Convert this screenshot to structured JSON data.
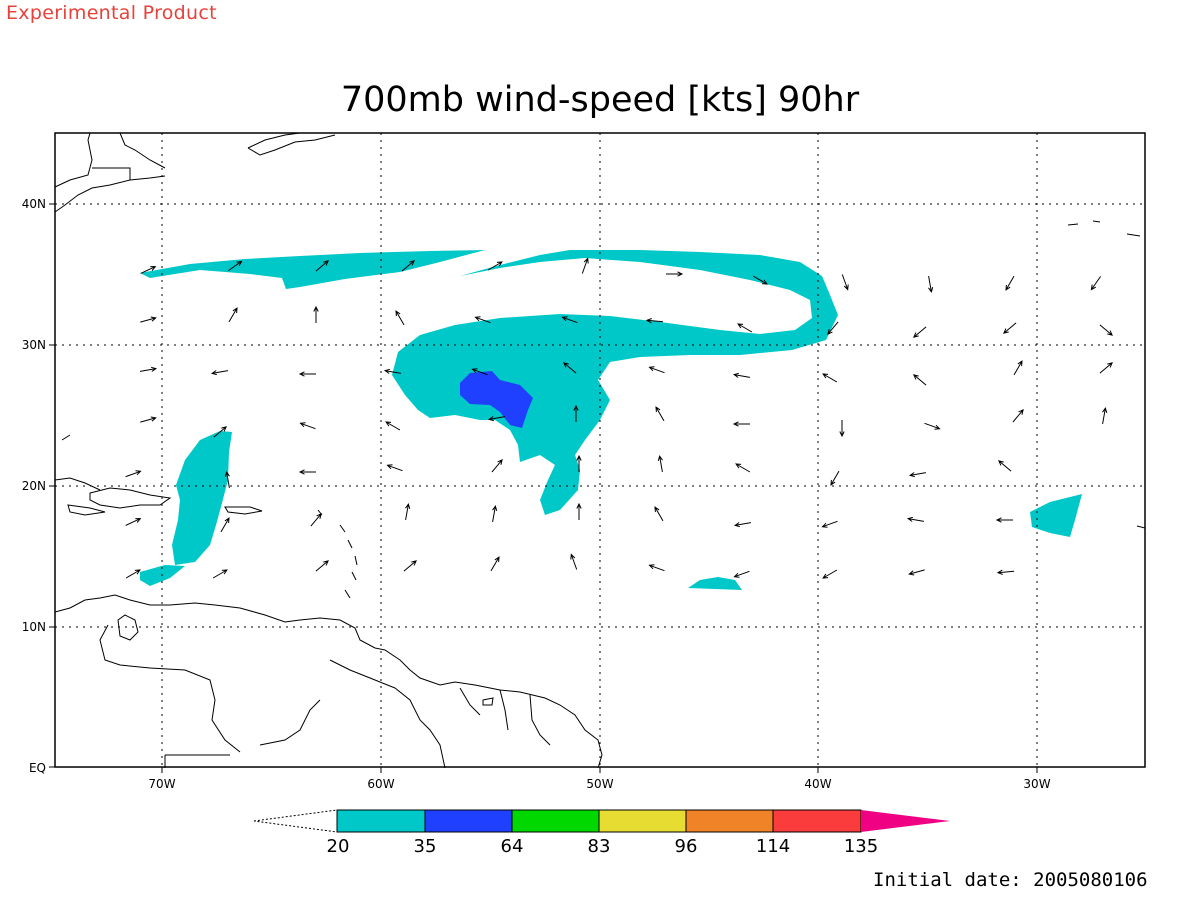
{
  "header": {
    "product_label": "Experimental Product",
    "title": "700mb wind-speed [kts] 90hr"
  },
  "footer": {
    "initial_date": "Initial date: 2005080106"
  },
  "map": {
    "lon_ticks": [
      "70W",
      "60W",
      "50W",
      "40W",
      "30W"
    ],
    "lat_ticks": [
      "40N",
      "30N",
      "20N",
      "10N",
      "EQ"
    ],
    "colors": {
      "shade_20_35": "#00c8c8",
      "shade_35_64": "#2040ff",
      "coastline": "#000000",
      "grid": "#000000"
    }
  },
  "colorbar": {
    "labels": [
      "20",
      "35",
      "64",
      "83",
      "96",
      "114",
      "135"
    ],
    "colors": [
      "#00c8c8",
      "#2040ff",
      "#00d800",
      "#e6dc32",
      "#f08228",
      "#fa3c3c",
      "#f00082"
    ]
  }
}
